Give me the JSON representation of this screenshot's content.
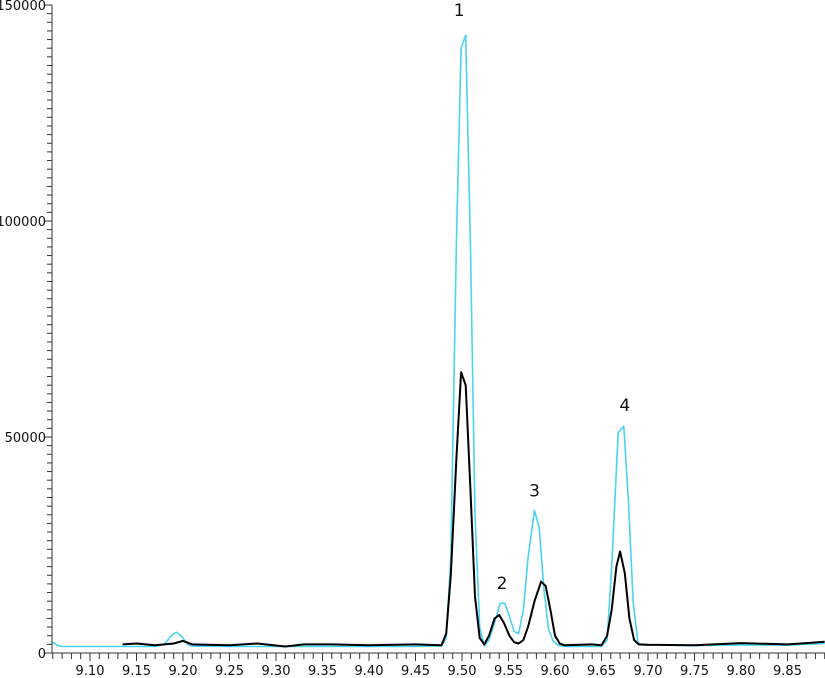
{
  "chart_data": {
    "type": "line",
    "title": "",
    "xlabel": "",
    "ylabel": "",
    "xlim": [
      9.059,
      9.89
    ],
    "ylim": [
      0,
      150000
    ],
    "grid": false,
    "x_ticks": [
      "9.10",
      "9.15",
      "9.20",
      "9.25",
      "9.30",
      "9.35",
      "9.40",
      "9.45",
      "9.50",
      "9.55",
      "9.60",
      "9.65",
      "9.70",
      "9.75",
      "9.80",
      "9.85"
    ],
    "x_tick_values": [
      9.1,
      9.15,
      9.2,
      9.25,
      9.3,
      9.35,
      9.4,
      9.45,
      9.5,
      9.55,
      9.6,
      9.65,
      9.7,
      9.75,
      9.8,
      9.85
    ],
    "x_minor_step": 0.01,
    "y_ticks": [
      "0",
      "50000",
      "100000",
      "150000"
    ],
    "y_tick_values": [
      0,
      50000,
      100000,
      150000
    ],
    "y_minor_step": 2000,
    "series": [
      {
        "color": "#4dd2f2",
        "x": [
          9.059,
          9.065,
          9.07,
          9.1,
          9.13,
          9.17,
          9.18,
          9.188,
          9.193,
          9.198,
          9.205,
          9.21,
          9.25,
          9.3,
          9.35,
          9.4,
          9.45,
          9.478,
          9.483,
          9.488,
          9.494,
          9.499,
          9.504,
          9.509,
          9.514,
          9.519,
          9.524,
          9.529,
          9.535,
          9.541,
          9.546,
          9.551,
          9.556,
          9.561,
          9.566,
          9.571,
          9.578,
          9.583,
          9.588,
          9.593,
          9.598,
          9.603,
          9.61,
          9.65,
          9.656,
          9.661,
          9.668,
          9.674,
          9.679,
          9.684,
          9.689,
          9.694,
          9.7,
          9.75,
          9.8,
          9.85,
          9.89
        ],
        "y": [
          2600,
          1800,
          1500,
          1500,
          1500,
          1500,
          2000,
          4200,
          4800,
          4000,
          2000,
          1600,
          1500,
          1500,
          1500,
          1500,
          1500,
          1600,
          3500,
          22000,
          95000,
          140000,
          143000,
          95000,
          32000,
          6000,
          1600,
          3000,
          7000,
          11500,
          11500,
          8500,
          5000,
          4500,
          10000,
          22000,
          33000,
          29000,
          15000,
          5500,
          2800,
          1800,
          1500,
          1500,
          3000,
          20000,
          51000,
          52500,
          35000,
          12000,
          2500,
          1800,
          1900,
          1700,
          1900,
          1800,
          2200
        ]
      },
      {
        "color": "#000000",
        "x": [
          9.135,
          9.15,
          9.17,
          9.19,
          9.2,
          9.21,
          9.25,
          9.28,
          9.31,
          9.33,
          9.36,
          9.4,
          9.45,
          9.478,
          9.483,
          9.488,
          9.494,
          9.499,
          9.504,
          9.509,
          9.514,
          9.519,
          9.524,
          9.529,
          9.535,
          9.54,
          9.545,
          9.551,
          9.556,
          9.561,
          9.566,
          9.571,
          9.578,
          9.585,
          9.59,
          9.595,
          9.6,
          9.605,
          9.61,
          9.64,
          9.65,
          9.656,
          9.661,
          9.666,
          9.67,
          9.675,
          9.68,
          9.685,
          9.69,
          9.7,
          9.75,
          9.8,
          9.85,
          9.87,
          9.89
        ],
        "y": [
          2000,
          2200,
          1800,
          2200,
          2800,
          2000,
          1800,
          2200,
          1500,
          2000,
          2000,
          1800,
          2000,
          1800,
          4500,
          18000,
          45000,
          65000,
          62000,
          38000,
          13000,
          3500,
          2000,
          4000,
          8000,
          8800,
          7000,
          4000,
          2500,
          2200,
          3000,
          6000,
          12000,
          16500,
          15500,
          10000,
          4000,
          2200,
          1800,
          2000,
          1800,
          4000,
          10000,
          20000,
          23500,
          18500,
          8000,
          3000,
          2000,
          1900,
          1800,
          2300,
          2000,
          2300,
          2600
        ]
      }
    ],
    "annotations": [
      {
        "text": "1",
        "x": 9.497,
        "y": 147500
      },
      {
        "text": "2",
        "x": 9.543,
        "y": 14800
      },
      {
        "text": "3",
        "x": 9.578,
        "y": 36200
      },
      {
        "text": "4",
        "x": 9.675,
        "y": 56000
      }
    ]
  }
}
